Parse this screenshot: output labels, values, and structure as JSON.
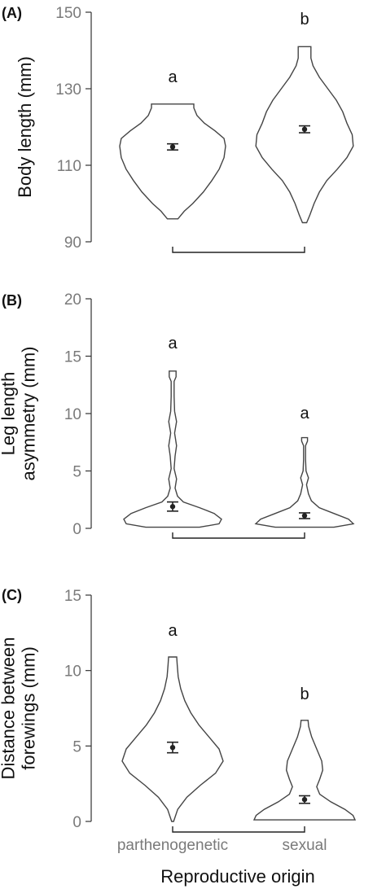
{
  "figure": {
    "xlabel": "Reproductive origin"
  },
  "chart_data": [
    {
      "type": "violin",
      "panel": "(A)",
      "ylabel": [
        "Body length (mm)"
      ],
      "ylim": [
        90,
        150
      ],
      "yticks": [
        90,
        110,
        130,
        150
      ],
      "categories": [
        "parthenogenetic",
        "sexual"
      ],
      "show_x_labels": false,
      "groups": [
        {
          "category": "parthenogenetic",
          "mean": 114.8,
          "se_low": 114.0,
          "se_high": 115.6,
          "min": 96,
          "max": 126,
          "letter": "a",
          "density": [
            [
              96,
              0.1
            ],
            [
              98,
              0.22
            ],
            [
              100,
              0.38
            ],
            [
              103,
              0.58
            ],
            [
              106,
              0.74
            ],
            [
              109,
              0.88
            ],
            [
              112,
              0.97
            ],
            [
              115,
              1.0
            ],
            [
              117,
              0.97
            ],
            [
              119,
              0.8
            ],
            [
              121,
              0.6
            ],
            [
              123,
              0.46
            ],
            [
              125,
              0.4
            ],
            [
              126,
              0.4
            ]
          ]
        },
        {
          "category": "sexual",
          "mean": 119.4,
          "se_low": 118.5,
          "se_high": 120.3,
          "min": 95,
          "max": 141,
          "letter": "b",
          "density": [
            [
              95,
              0.04
            ],
            [
              97,
              0.1
            ],
            [
              100,
              0.18
            ],
            [
              103,
              0.28
            ],
            [
              106,
              0.42
            ],
            [
              109,
              0.62
            ],
            [
              112,
              0.8
            ],
            [
              115,
              0.92
            ],
            [
              118,
              0.9
            ],
            [
              121,
              0.8
            ],
            [
              124,
              0.72
            ],
            [
              127,
              0.6
            ],
            [
              130,
              0.44
            ],
            [
              133,
              0.28
            ],
            [
              136,
              0.16
            ],
            [
              138,
              0.12
            ],
            [
              141,
              0.12
            ]
          ]
        }
      ]
    },
    {
      "type": "violin",
      "panel": "(B)",
      "ylabel": [
        "Leg length",
        "asymmetry (mm)"
      ],
      "ylim": [
        0,
        20
      ],
      "yticks": [
        0,
        5,
        10,
        15,
        20
      ],
      "categories": [
        "parthenogenetic",
        "sexual"
      ],
      "show_x_labels": false,
      "groups": [
        {
          "category": "parthenogenetic",
          "mean": 1.9,
          "se_low": 1.5,
          "se_high": 2.3,
          "min": 0.1,
          "max": 13.7,
          "letter": "a",
          "density": [
            [
              0.1,
              0.55
            ],
            [
              0.4,
              0.95
            ],
            [
              0.8,
              1.0
            ],
            [
              1.3,
              0.85
            ],
            [
              1.8,
              0.55
            ],
            [
              2.3,
              0.22
            ],
            [
              2.8,
              0.1
            ],
            [
              3.5,
              0.05
            ],
            [
              4.3,
              0.08
            ],
            [
              5.2,
              0.03
            ],
            [
              6.3,
              0.05
            ],
            [
              7.2,
              0.08
            ],
            [
              8.3,
              0.04
            ],
            [
              9.3,
              0.08
            ],
            [
              10.2,
              0.04
            ],
            [
              11.5,
              0.03
            ],
            [
              12.8,
              0.03
            ],
            [
              13.2,
              0.07
            ],
            [
              13.7,
              0.07
            ]
          ]
        },
        {
          "category": "sexual",
          "mean": 1.1,
          "se_low": 0.85,
          "se_high": 1.35,
          "min": 0.1,
          "max": 7.9,
          "letter": "a",
          "density": [
            [
              0.1,
              0.6
            ],
            [
              0.4,
              1.0
            ],
            [
              0.8,
              0.9
            ],
            [
              1.3,
              0.6
            ],
            [
              1.8,
              0.3
            ],
            [
              2.4,
              0.14
            ],
            [
              3.0,
              0.08
            ],
            [
              3.8,
              0.04
            ],
            [
              4.4,
              0.08
            ],
            [
              5.0,
              0.03
            ],
            [
              6.0,
              0.02
            ],
            [
              7.2,
              0.02
            ],
            [
              7.6,
              0.06
            ],
            [
              7.9,
              0.06
            ]
          ]
        }
      ]
    },
    {
      "type": "violin",
      "panel": "(C)",
      "ylabel": [
        "Distance between",
        "forewings (mm)"
      ],
      "ylim": [
        0,
        15
      ],
      "yticks": [
        0,
        5,
        10,
        15
      ],
      "categories": [
        "parthenogenetic",
        "sexual"
      ],
      "show_x_labels": true,
      "groups": [
        {
          "category": "parthenogenetic",
          "mean": 4.9,
          "se_low": 4.55,
          "se_high": 5.25,
          "min": 0.0,
          "max": 10.9,
          "letter": "a",
          "density": [
            [
              0.0,
              0.02
            ],
            [
              0.8,
              0.1
            ],
            [
              1.6,
              0.28
            ],
            [
              2.4,
              0.55
            ],
            [
              3.2,
              0.85
            ],
            [
              4.0,
              1.0
            ],
            [
              4.8,
              0.92
            ],
            [
              5.6,
              0.72
            ],
            [
              6.4,
              0.52
            ],
            [
              7.2,
              0.36
            ],
            [
              8.0,
              0.24
            ],
            [
              8.8,
              0.16
            ],
            [
              9.6,
              0.11
            ],
            [
              10.4,
              0.09
            ],
            [
              10.9,
              0.08
            ]
          ]
        },
        {
          "category": "sexual",
          "mean": 1.45,
          "se_low": 1.2,
          "se_high": 1.7,
          "min": 0.1,
          "max": 6.7,
          "letter": "b",
          "density": [
            [
              0.1,
              1.0
            ],
            [
              0.4,
              0.96
            ],
            [
              0.8,
              0.8
            ],
            [
              1.3,
              0.52
            ],
            [
              1.8,
              0.3
            ],
            [
              2.3,
              0.24
            ],
            [
              2.8,
              0.3
            ],
            [
              3.4,
              0.36
            ],
            [
              4.0,
              0.34
            ],
            [
              4.8,
              0.24
            ],
            [
              5.6,
              0.14
            ],
            [
              6.3,
              0.08
            ],
            [
              6.7,
              0.07
            ]
          ]
        }
      ]
    }
  ]
}
